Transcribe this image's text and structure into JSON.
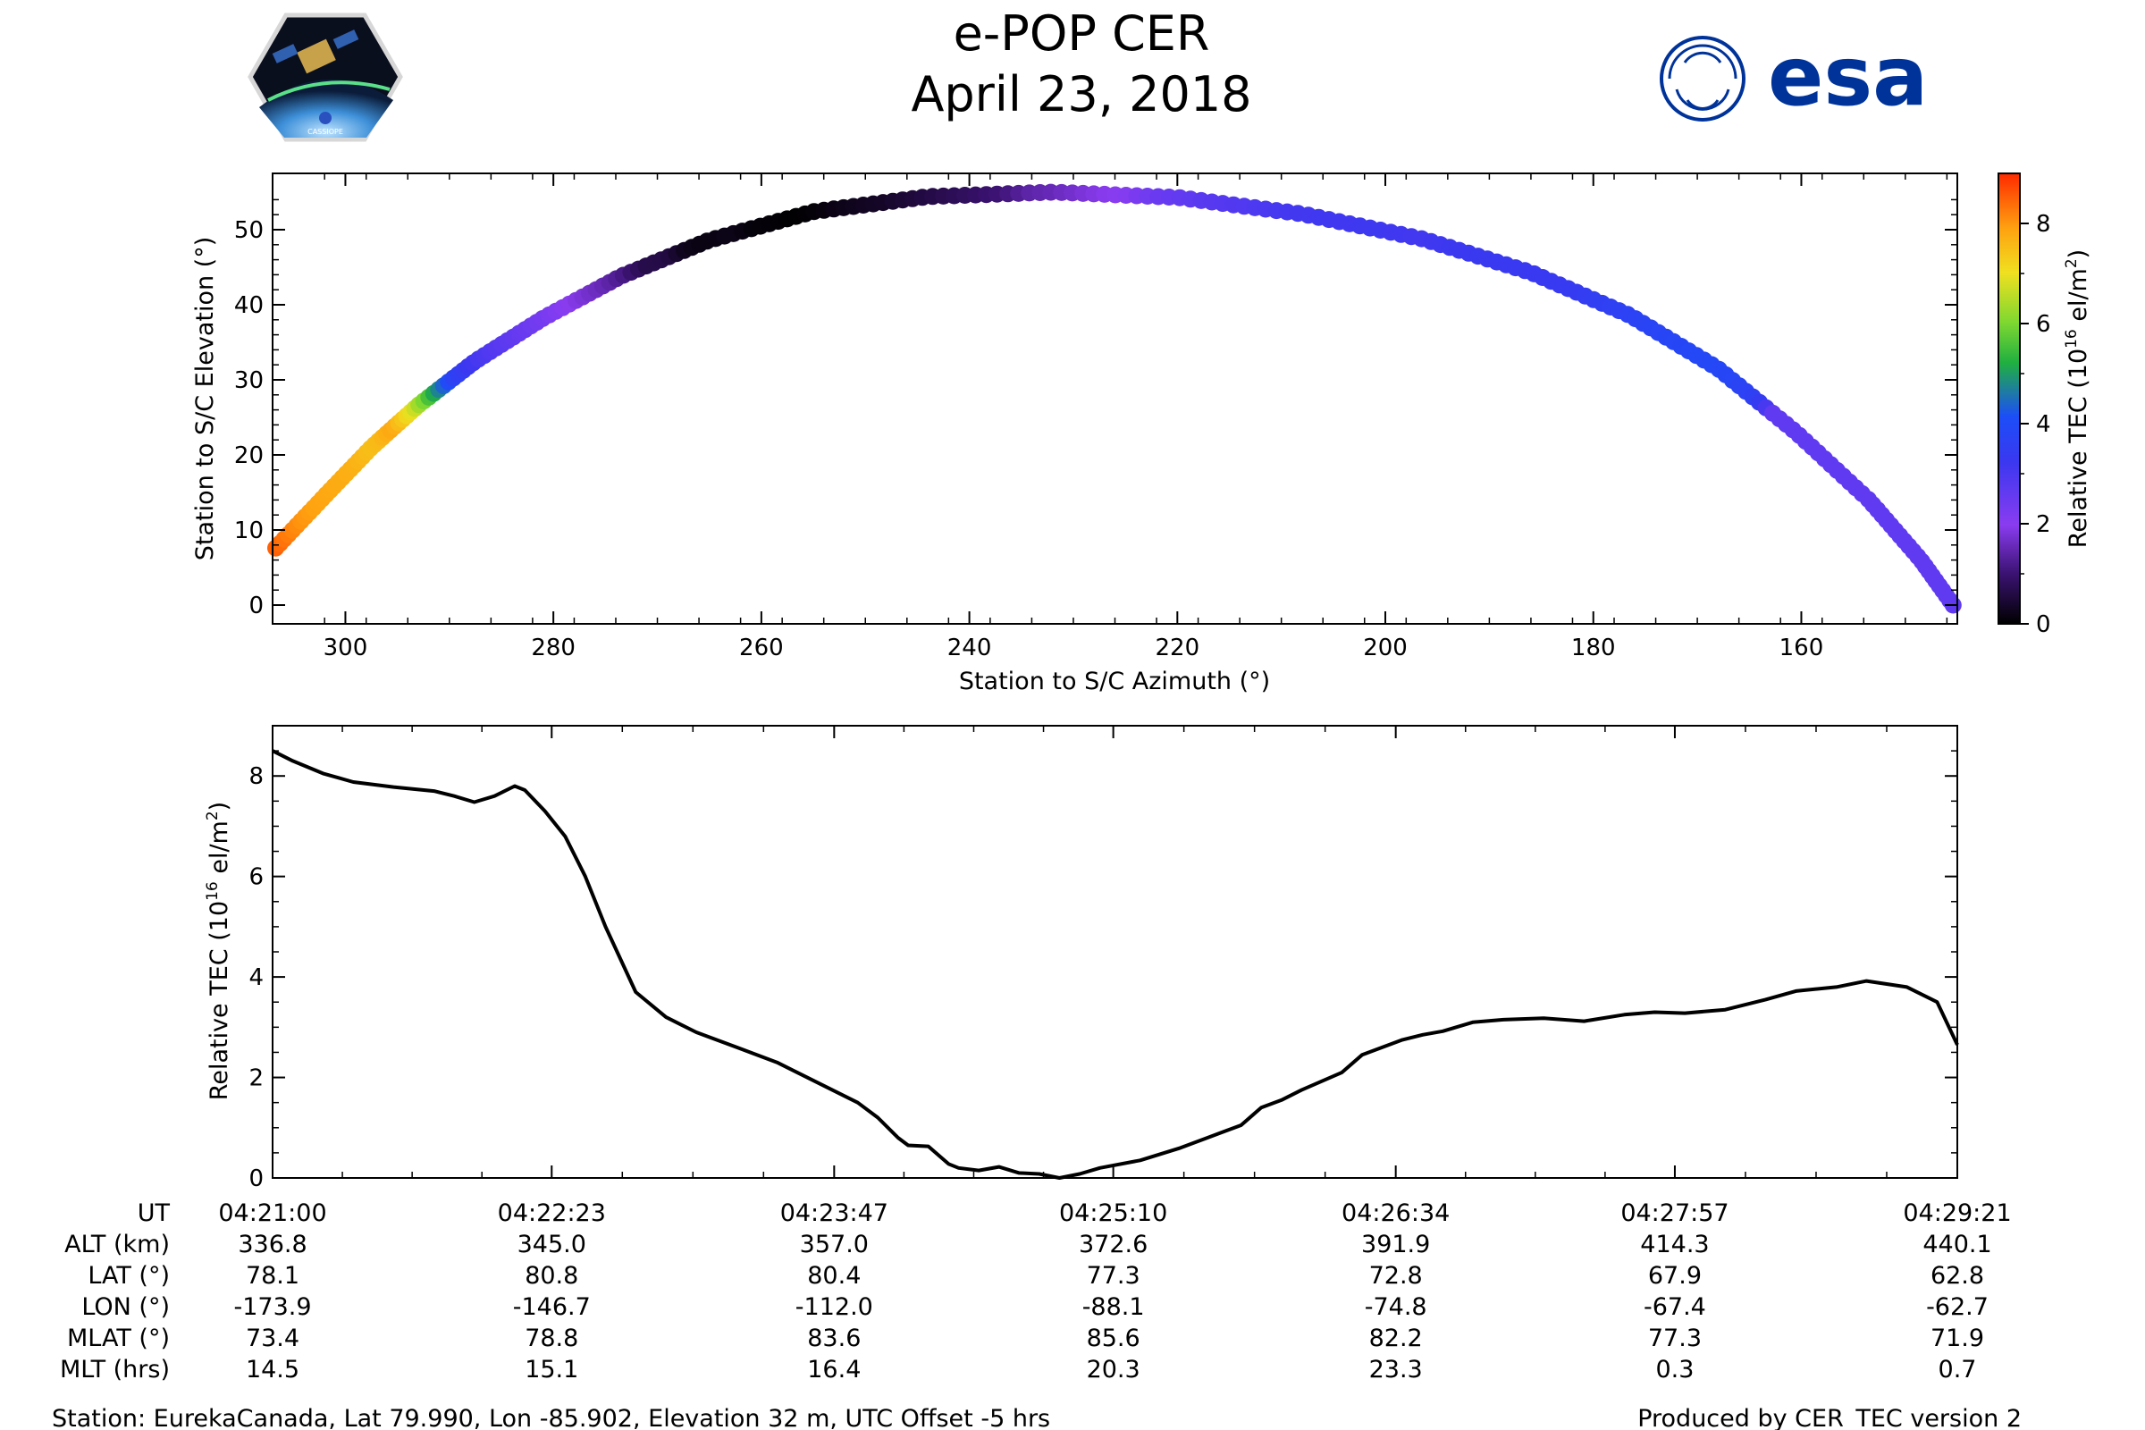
{
  "header": {
    "title": "e-POP CER",
    "date": "April 23, 2018",
    "left_logo": {
      "caption": "CASSIOPE"
    },
    "right_logo": {
      "text": "esa",
      "color": "#003399"
    }
  },
  "chart_data": [
    {
      "type": "scatter",
      "name": "elevation-vs-azimuth",
      "xlabel": "Station to S/C Azimuth (°)",
      "ylabel": "Station to S/C Elevation (°)",
      "xlim": [
        307,
        145
      ],
      "ylim": [
        -2.5,
        57.5
      ],
      "xticks": [
        300,
        280,
        260,
        240,
        220,
        200,
        180,
        160
      ],
      "yticks": [
        0,
        10,
        20,
        30,
        40,
        50
      ],
      "colorbar": {
        "label": "Relative TEC (10¹⁶ el/m²)",
        "label_main": "Relative TEC (10",
        "label_exp": "16",
        "label_tail": " el/m",
        "label_sq": "2",
        "label_close": ")",
        "range": [
          0,
          9
        ],
        "ticks": [
          0,
          2,
          4,
          6,
          8
        ],
        "colormap": "gnuplot2-like"
      },
      "track": {
        "note": "sample points along the pass: [time_min, azimuth_deg, elevation_deg]; colour = TEC at same time",
        "points": [
          [
            0.0,
            306.7,
            7.6
          ],
          [
            0.5,
            302.0,
            14.5
          ],
          [
            1.0,
            297.5,
            21.0
          ],
          [
            1.5,
            293.0,
            26.6
          ],
          [
            2.0,
            287.5,
            32.5
          ],
          [
            2.5,
            281.0,
            38.2
          ],
          [
            3.0,
            273.5,
            43.8
          ],
          [
            3.5,
            265.0,
            48.6
          ],
          [
            4.0,
            255.0,
            52.4
          ],
          [
            4.5,
            244.0,
            54.4
          ],
          [
            5.0,
            232.0,
            55.0
          ],
          [
            5.5,
            220.0,
            54.3
          ],
          [
            6.0,
            208.0,
            52.1
          ],
          [
            6.5,
            196.5,
            48.8
          ],
          [
            7.0,
            186.0,
            44.3
          ],
          [
            7.5,
            176.5,
            38.6
          ],
          [
            8.0,
            168.0,
            31.5
          ],
          [
            8.5,
            160.5,
            23.0
          ],
          [
            9.0,
            153.5,
            14.0
          ],
          [
            9.5,
            148.5,
            6.0
          ],
          [
            9.9,
            145.4,
            0.0
          ]
        ]
      }
    },
    {
      "type": "line",
      "name": "tec-vs-time",
      "ylabel": "Relative TEC (10¹⁶ el/m²)",
      "ylabel_main": "Relative TEC (10",
      "ylabel_exp": "16",
      "ylabel_tail": " el/m",
      "ylabel_sq": "2",
      "ylabel_close": ")",
      "xlim_min": [
        0,
        8.35
      ],
      "ylim": [
        0,
        9
      ],
      "yticks": [
        0,
        2,
        4,
        6,
        8
      ],
      "xtick_minutes": [
        0,
        1.3833,
        2.7833,
        4.1667,
        5.5667,
        6.95,
        8.35
      ],
      "series": {
        "name": "Relative TEC",
        "x_min": [
          0,
          0.1,
          0.25,
          0.4,
          0.6,
          0.8,
          0.9,
          1.0,
          1.1,
          1.2,
          1.25,
          1.35,
          1.45,
          1.55,
          1.65,
          1.8,
          1.95,
          2.1,
          2.2,
          2.3,
          2.4,
          2.5,
          2.6,
          2.75,
          2.9,
          3.0,
          3.1,
          3.15,
          3.25,
          3.35,
          3.4,
          3.5,
          3.6,
          3.7,
          3.8,
          3.9,
          4.0,
          4.1,
          4.3,
          4.5,
          4.7,
          4.8,
          4.9,
          5.0,
          5.1,
          5.3,
          5.4,
          5.6,
          5.7,
          5.8,
          5.95,
          6.1,
          6.3,
          6.5,
          6.7,
          6.85,
          7.0,
          7.2,
          7.4,
          7.55,
          7.75,
          7.9,
          8.1,
          8.25,
          8.35
        ],
        "values": [
          8.5,
          8.3,
          8.05,
          7.88,
          7.78,
          7.7,
          7.6,
          7.48,
          7.6,
          7.8,
          7.72,
          7.3,
          6.8,
          6.0,
          5.0,
          3.7,
          3.2,
          2.9,
          2.75,
          2.6,
          2.45,
          2.3,
          2.1,
          1.8,
          1.5,
          1.2,
          0.8,
          0.65,
          0.63,
          0.28,
          0.2,
          0.15,
          0.22,
          0.1,
          0.08,
          0.0,
          0.08,
          0.2,
          0.35,
          0.6,
          0.9,
          1.05,
          1.4,
          1.55,
          1.75,
          2.1,
          2.45,
          2.75,
          2.85,
          2.92,
          3.1,
          3.15,
          3.18,
          3.12,
          3.25,
          3.3,
          3.28,
          3.35,
          3.55,
          3.72,
          3.8,
          3.92,
          3.8,
          3.5,
          2.65
        ]
      }
    }
  ],
  "table": {
    "row_labels": [
      "UT",
      "ALT (km)",
      "LAT (°)",
      "LON (°)",
      "MLAT (°)",
      "MLT (hrs)"
    ],
    "columns": [
      [
        "04:21:00",
        "336.8",
        "78.1",
        "-173.9",
        "73.4",
        "14.5"
      ],
      [
        "04:22:23",
        "345.0",
        "80.8",
        "-146.7",
        "78.8",
        "15.1"
      ],
      [
        "04:23:47",
        "357.0",
        "80.4",
        "-112.0",
        "83.6",
        "16.4"
      ],
      [
        "04:25:10",
        "372.6",
        "77.3",
        "-88.1",
        "85.6",
        "20.3"
      ],
      [
        "04:26:34",
        "391.9",
        "72.8",
        "-74.8",
        "82.2",
        "23.3"
      ],
      [
        "04:27:57",
        "414.3",
        "67.9",
        "-67.4",
        "77.3",
        "0.3"
      ],
      [
        "04:29:21",
        "440.1",
        "62.8",
        "-62.7",
        "71.9",
        "0.7"
      ]
    ]
  },
  "footer": {
    "station": "Station: EurekaCanada, Lat 79.990, Lon -85.902, Elevation 32 m, UTC Offset -5 hrs",
    "produced": "Produced by CER_TEC version 2"
  }
}
